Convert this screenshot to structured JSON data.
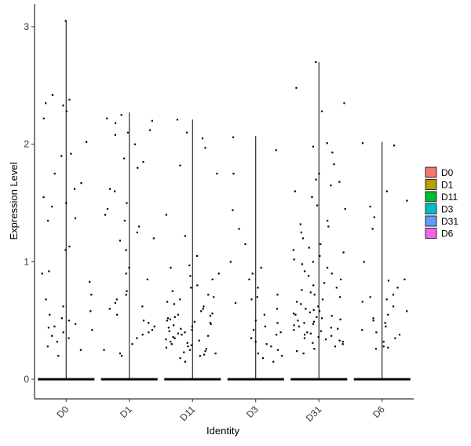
{
  "chart_data": {
    "type": "violin",
    "xlabel": "Identity",
    "ylabel": "Expression Level",
    "categories": [
      "D0",
      "D1",
      "D11",
      "D3",
      "D31",
      "D6"
    ],
    "yticks": [
      0,
      1,
      2,
      3
    ],
    "ylim": [
      -0.17,
      3.2
    ],
    "grid": false,
    "legend_position": "right",
    "legend": [
      {
        "label": "D0",
        "color": "#F8766D"
      },
      {
        "label": "D1",
        "color": "#B79F00"
      },
      {
        "label": "D11",
        "color": "#00BA38"
      },
      {
        "label": "D3",
        "color": "#00BFC4"
      },
      {
        "label": "D31",
        "color": "#619CFF"
      },
      {
        "label": "D6",
        "color": "#F564E3"
      }
    ],
    "violins": [
      {
        "category": "D0",
        "max": 3.05
      },
      {
        "category": "D1",
        "max": 2.27
      },
      {
        "category": "D11",
        "max": 2.21
      },
      {
        "category": "D3",
        "max": 2.07
      },
      {
        "category": "D31",
        "max": 2.7
      },
      {
        "category": "D6",
        "max": 2.02
      }
    ],
    "highlighted_points": [
      {
        "category": "D0",
        "values": [
          3.05,
          2.38,
          2.35,
          2.42,
          2.33,
          2.28,
          2.22,
          2.02,
          1.92,
          1.9,
          1.75,
          1.67,
          1.62,
          1.55,
          1.5,
          1.47,
          1.37,
          1.35,
          1.13,
          1.1,
          0.92,
          0.9,
          0.83,
          0.72,
          0.68,
          0.62,
          0.58,
          0.55,
          0.52,
          0.5,
          0.47,
          0.45,
          0.44,
          0.42,
          0.4,
          0.37,
          0.35,
          0.32,
          0.28,
          0.25,
          0.2
        ]
      },
      {
        "category": "D1",
        "values": [
          2.25,
          2.22,
          2.2,
          2.18,
          2.12,
          2.1,
          2.08,
          2.0,
          1.88,
          1.85,
          1.8,
          1.62,
          1.6,
          1.5,
          1.45,
          1.4,
          1.35,
          1.3,
          1.25,
          1.2,
          1.18,
          1.1,
          0.95,
          0.9,
          0.85,
          0.75,
          0.72,
          0.68,
          0.65,
          0.62,
          0.6,
          0.55,
          0.5,
          0.48,
          0.45,
          0.42,
          0.4,
          0.38,
          0.35,
          0.3,
          0.25,
          0.22,
          0.2
        ]
      },
      {
        "category": "D11",
        "values": [
          2.21,
          2.1,
          2.05,
          1.97,
          1.82,
          1.75,
          1.4,
          1.22,
          1.05,
          0.97,
          0.95,
          0.9,
          0.88,
          0.85,
          0.8,
          0.78,
          0.75,
          0.72,
          0.7,
          0.68,
          0.66,
          0.64,
          0.62,
          0.6,
          0.58,
          0.56,
          0.55,
          0.54,
          0.53,
          0.52,
          0.51,
          0.5,
          0.49,
          0.48,
          0.47,
          0.46,
          0.45,
          0.44,
          0.43,
          0.42,
          0.41,
          0.4,
          0.39,
          0.38,
          0.37,
          0.36,
          0.35,
          0.34,
          0.33,
          0.32,
          0.31,
          0.3,
          0.29,
          0.28,
          0.27,
          0.26,
          0.25,
          0.24,
          0.23,
          0.22,
          0.21,
          0.2,
          0.18,
          0.15
        ]
      },
      {
        "category": "D3",
        "values": [
          2.06,
          1.95,
          1.75,
          1.44,
          1.28,
          1.15,
          1.0,
          0.95,
          0.9,
          0.85,
          0.78,
          0.72,
          0.7,
          0.68,
          0.65,
          0.6,
          0.55,
          0.5,
          0.48,
          0.45,
          0.42,
          0.4,
          0.38,
          0.35,
          0.32,
          0.3,
          0.28,
          0.25,
          0.22,
          0.2,
          0.18,
          0.15
        ]
      },
      {
        "category": "D31",
        "values": [
          2.7,
          2.48,
          2.35,
          2.28,
          2.01,
          1.98,
          1.93,
          1.83,
          1.75,
          1.7,
          1.68,
          1.65,
          1.6,
          1.55,
          1.48,
          1.45,
          1.35,
          1.32,
          1.3,
          1.25,
          1.2,
          1.15,
          1.12,
          1.1,
          1.08,
          1.05,
          1.02,
          1.0,
          0.98,
          0.95,
          0.92,
          0.9,
          0.88,
          0.85,
          0.82,
          0.8,
          0.78,
          0.76,
          0.74,
          0.72,
          0.7,
          0.68,
          0.66,
          0.64,
          0.62,
          0.6,
          0.59,
          0.58,
          0.57,
          0.56,
          0.55,
          0.54,
          0.53,
          0.52,
          0.51,
          0.5,
          0.49,
          0.48,
          0.47,
          0.46,
          0.45,
          0.44,
          0.43,
          0.42,
          0.41,
          0.4,
          0.39,
          0.38,
          0.37,
          0.36,
          0.35,
          0.34,
          0.33,
          0.32,
          0.31,
          0.3,
          0.28,
          0.26,
          0.24,
          0.22
        ]
      },
      {
        "category": "D6",
        "values": [
          2.01,
          1.99,
          1.6,
          1.52,
          1.47,
          1.38,
          1.28,
          1.0,
          0.85,
          0.84,
          0.78,
          0.72,
          0.7,
          0.68,
          0.66,
          0.62,
          0.58,
          0.55,
          0.52,
          0.5,
          0.48,
          0.45,
          0.42,
          0.4,
          0.38,
          0.35,
          0.32,
          0.28,
          0.27,
          0.26
        ]
      }
    ]
  }
}
